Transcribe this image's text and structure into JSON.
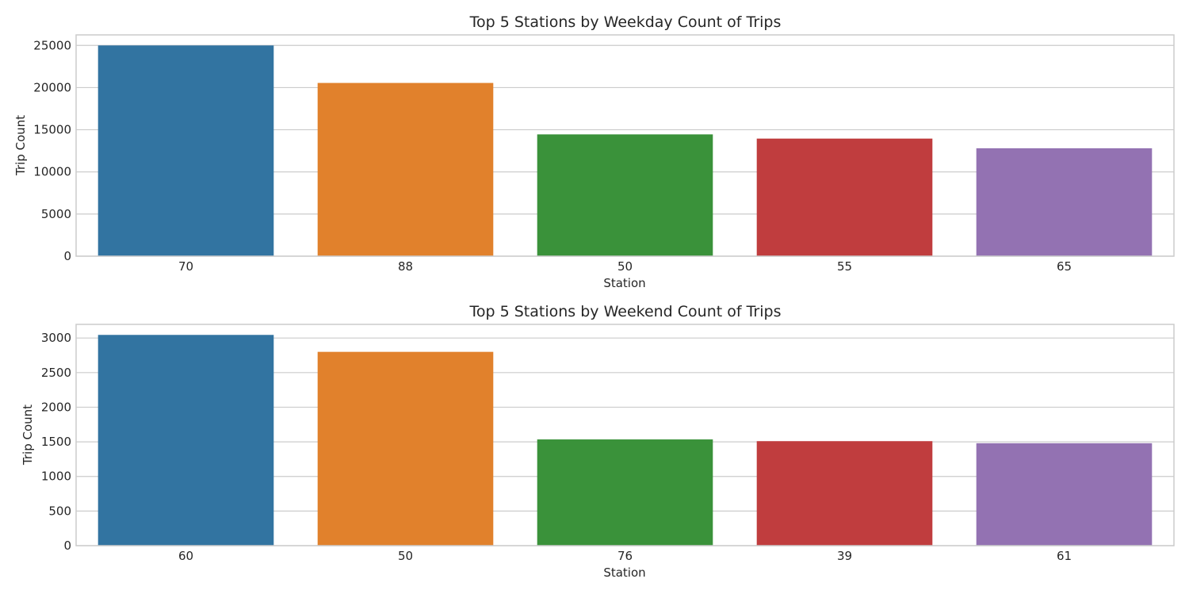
{
  "chart_data": [
    {
      "type": "bar",
      "title": "Top 5 Stations by Weekday Count of Trips",
      "xlabel": "Station",
      "ylabel": "Trip Count",
      "categories": [
        "70",
        "88",
        "50",
        "55",
        "65"
      ],
      "values": [
        25000,
        20550,
        14450,
        13950,
        12800
      ],
      "colors": [
        "#3274a1",
        "#e1812c",
        "#3a923a",
        "#c03d3e",
        "#9372b2"
      ],
      "yticks": [
        0,
        5000,
        10000,
        15000,
        20000,
        25000
      ],
      "ylim": [
        0,
        26250
      ],
      "grid": true
    },
    {
      "type": "bar",
      "title": "Top 5 Stations by Weekend Count of Trips",
      "xlabel": "Station",
      "ylabel": "Trip Count",
      "categories": [
        "60",
        "50",
        "76",
        "39",
        "61"
      ],
      "values": [
        3045,
        2800,
        1535,
        1510,
        1480
      ],
      "colors": [
        "#3274a1",
        "#e1812c",
        "#3a923a",
        "#c03d3e",
        "#9372b2"
      ],
      "yticks": [
        0,
        500,
        1000,
        1500,
        2000,
        2500,
        3000
      ],
      "ylim": [
        0,
        3197
      ],
      "grid": true
    }
  ]
}
